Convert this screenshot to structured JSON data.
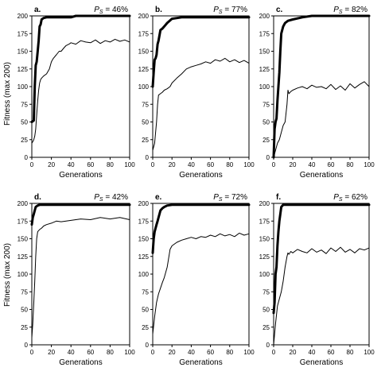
{
  "figure": {
    "y_axis_title": "Fitness (max 200)",
    "x_axis_title": "Generations"
  },
  "chart_data": [
    {
      "type": "line",
      "panel": "a.",
      "annotation_prefix": "P",
      "annotation_sub": "S",
      "annotation_value": " = 46%",
      "xlabel": "Generations",
      "ylabel": "Fitness (max 200)",
      "xlim": [
        0,
        100
      ],
      "ylim": [
        0,
        200
      ],
      "x_ticks": [
        0,
        20,
        40,
        60,
        80,
        100
      ],
      "y_ticks": [
        0,
        25,
        50,
        75,
        100,
        125,
        150,
        175,
        200
      ],
      "grid": false,
      "series": [
        {
          "style": "thick",
          "x": [
            0,
            2,
            3,
            4,
            5,
            6,
            7,
            8,
            9,
            10,
            12,
            15,
            20,
            30,
            40,
            45,
            50,
            60,
            80,
            100
          ],
          "y": [
            50,
            52,
            100,
            130,
            135,
            150,
            165,
            185,
            188,
            195,
            197,
            198,
            198,
            198,
            198,
            200,
            200,
            200,
            200,
            200
          ]
        },
        {
          "style": "thin",
          "x": [
            0,
            1,
            2,
            3,
            4,
            5,
            6,
            7,
            8,
            9,
            10,
            12,
            15,
            18,
            20,
            22,
            25,
            28,
            30,
            33,
            35,
            38,
            40,
            45,
            50,
            55,
            60,
            65,
            70,
            75,
            80,
            85,
            90,
            95,
            100
          ],
          "y": [
            20,
            22,
            25,
            30,
            40,
            60,
            80,
            95,
            105,
            110,
            112,
            115,
            118,
            125,
            135,
            140,
            145,
            150,
            150,
            155,
            158,
            160,
            162,
            160,
            165,
            163,
            162,
            166,
            161,
            165,
            163,
            167,
            164,
            166,
            163
          ]
        }
      ]
    },
    {
      "type": "line",
      "panel": "b.",
      "annotation_prefix": "P",
      "annotation_sub": "S",
      "annotation_value": " = 77%",
      "xlabel": "Generations",
      "ylabel": "",
      "xlim": [
        0,
        100
      ],
      "ylim": [
        0,
        200
      ],
      "x_ticks": [
        0,
        20,
        40,
        60,
        80,
        100
      ],
      "y_ticks": [
        0,
        25,
        50,
        75,
        100,
        125,
        150,
        175,
        200
      ],
      "grid": false,
      "series": [
        {
          "style": "thick",
          "x": [
            0,
            1,
            2,
            3,
            4,
            5,
            6,
            8,
            10,
            12,
            15,
            20,
            30,
            40,
            60,
            80,
            100
          ],
          "y": [
            100,
            120,
            138,
            140,
            145,
            160,
            165,
            180,
            182,
            185,
            190,
            196,
            198,
            198,
            198,
            198,
            198
          ]
        },
        {
          "style": "thin",
          "x": [
            0,
            2,
            4,
            5,
            6,
            8,
            10,
            12,
            15,
            18,
            20,
            25,
            30,
            35,
            40,
            45,
            50,
            55,
            60,
            65,
            70,
            75,
            80,
            85,
            90,
            95,
            100
          ],
          "y": [
            10,
            20,
            50,
            75,
            88,
            90,
            92,
            95,
            97,
            100,
            105,
            112,
            118,
            125,
            128,
            130,
            132,
            135,
            133,
            138,
            136,
            140,
            135,
            138,
            134,
            137,
            133
          ]
        }
      ]
    },
    {
      "type": "line",
      "panel": "c.",
      "annotation_prefix": "P",
      "annotation_sub": "S",
      "annotation_value": " = 82%",
      "xlabel": "Generations",
      "ylabel": "",
      "xlim": [
        0,
        100
      ],
      "ylim": [
        0,
        200
      ],
      "x_ticks": [
        0,
        20,
        40,
        60,
        80,
        100
      ],
      "y_ticks": [
        0,
        25,
        50,
        75,
        100,
        125,
        150,
        175,
        200
      ],
      "grid": false,
      "series": [
        {
          "style": "thick",
          "x": [
            0,
            1,
            2,
            3,
            4,
            5,
            6,
            7,
            8,
            9,
            10,
            12,
            15,
            20,
            30,
            40,
            60,
            80,
            100
          ],
          "y": [
            0,
            40,
            50,
            55,
            80,
            100,
            120,
            150,
            175,
            180,
            185,
            190,
            193,
            195,
            198,
            200,
            200,
            200,
            200
          ]
        },
        {
          "style": "thin",
          "x": [
            0,
            2,
            4,
            6,
            8,
            10,
            12,
            14,
            15,
            16,
            18,
            20,
            25,
            30,
            35,
            40,
            45,
            50,
            55,
            60,
            65,
            70,
            75,
            80,
            85,
            90,
            95,
            100
          ],
          "y": [
            0,
            10,
            20,
            25,
            35,
            45,
            50,
            75,
            95,
            90,
            93,
            95,
            98,
            100,
            97,
            102,
            99,
            100,
            97,
            103,
            96,
            101,
            95,
            104,
            98,
            103,
            107,
            100
          ]
        }
      ]
    },
    {
      "type": "line",
      "panel": "d.",
      "annotation_prefix": "P",
      "annotation_sub": "S",
      "annotation_value": " = 42%",
      "xlabel": "Generations",
      "ylabel": "Fitness (max 200)",
      "xlim": [
        0,
        100
      ],
      "ylim": [
        0,
        200
      ],
      "x_ticks": [
        0,
        20,
        40,
        60,
        80,
        100
      ],
      "y_ticks": [
        0,
        25,
        50,
        75,
        100,
        125,
        150,
        175,
        200
      ],
      "grid": false,
      "series": [
        {
          "style": "thick",
          "x": [
            0,
            1,
            2,
            3,
            4,
            5,
            6,
            8,
            10,
            15,
            20,
            40,
            60,
            80,
            100
          ],
          "y": [
            170,
            180,
            185,
            190,
            195,
            196,
            197,
            198,
            198,
            198,
            198,
            198,
            198,
            198,
            198
          ]
        },
        {
          "style": "thin",
          "x": [
            0,
            1,
            2,
            3,
            4,
            5,
            6,
            8,
            10,
            12,
            15,
            20,
            25,
            30,
            40,
            50,
            60,
            70,
            80,
            90,
            100
          ],
          "y": [
            10,
            30,
            60,
            90,
            125,
            150,
            160,
            163,
            165,
            168,
            170,
            172,
            175,
            174,
            176,
            178,
            177,
            180,
            178,
            180,
            177
          ]
        }
      ]
    },
    {
      "type": "line",
      "panel": "e.",
      "annotation_prefix": "P",
      "annotation_sub": "S",
      "annotation_value": " = 72%",
      "xlabel": "Generations",
      "ylabel": "",
      "xlim": [
        0,
        100
      ],
      "ylim": [
        0,
        200
      ],
      "x_ticks": [
        0,
        20,
        40,
        60,
        80,
        100
      ],
      "y_ticks": [
        0,
        25,
        50,
        75,
        100,
        125,
        150,
        175,
        200
      ],
      "grid": false,
      "series": [
        {
          "style": "thick",
          "x": [
            0,
            1,
            2,
            3,
            4,
            5,
            6,
            7,
            8,
            10,
            12,
            15,
            20,
            30,
            40,
            60,
            80,
            100
          ],
          "y": [
            130,
            150,
            160,
            165,
            170,
            175,
            180,
            185,
            190,
            193,
            195,
            197,
            198,
            198,
            198,
            198,
            198,
            198
          ]
        },
        {
          "style": "thin",
          "x": [
            0,
            2,
            4,
            6,
            8,
            10,
            12,
            15,
            18,
            20,
            25,
            30,
            35,
            40,
            45,
            50,
            55,
            60,
            65,
            70,
            75,
            80,
            85,
            90,
            95,
            100
          ],
          "y": [
            15,
            40,
            60,
            72,
            80,
            88,
            95,
            110,
            135,
            140,
            145,
            148,
            150,
            152,
            150,
            153,
            152,
            155,
            153,
            157,
            154,
            156,
            153,
            158,
            155,
            157
          ]
        }
      ]
    },
    {
      "type": "line",
      "panel": "f.",
      "annotation_prefix": "P",
      "annotation_sub": "S",
      "annotation_value": " = 62%",
      "xlabel": "Generations",
      "ylabel": "",
      "xlim": [
        0,
        100
      ],
      "ylim": [
        0,
        200
      ],
      "x_ticks": [
        0,
        20,
        40,
        60,
        80,
        100
      ],
      "y_ticks": [
        0,
        25,
        50,
        75,
        100,
        125,
        150,
        175,
        200
      ],
      "grid": false,
      "series": [
        {
          "style": "thick",
          "x": [
            0,
            1,
            2,
            3,
            4,
            5,
            6,
            7,
            8,
            10,
            12,
            15,
            20,
            30,
            40,
            60,
            80,
            100
          ],
          "y": [
            45,
            60,
            100,
            110,
            140,
            160,
            175,
            185,
            195,
            198,
            198,
            198,
            198,
            198,
            198,
            198,
            198,
            198
          ]
        },
        {
          "style": "thin",
          "x": [
            0,
            2,
            4,
            6,
            8,
            10,
            12,
            14,
            15,
            16,
            18,
            20,
            25,
            30,
            35,
            40,
            45,
            50,
            55,
            60,
            65,
            70,
            75,
            80,
            85,
            90,
            95,
            100
          ],
          "y": [
            0,
            30,
            55,
            65,
            75,
            90,
            110,
            125,
            130,
            128,
            132,
            130,
            135,
            132,
            130,
            136,
            131,
            134,
            129,
            137,
            132,
            138,
            131,
            135,
            130,
            136,
            134,
            137
          ]
        }
      ]
    }
  ]
}
